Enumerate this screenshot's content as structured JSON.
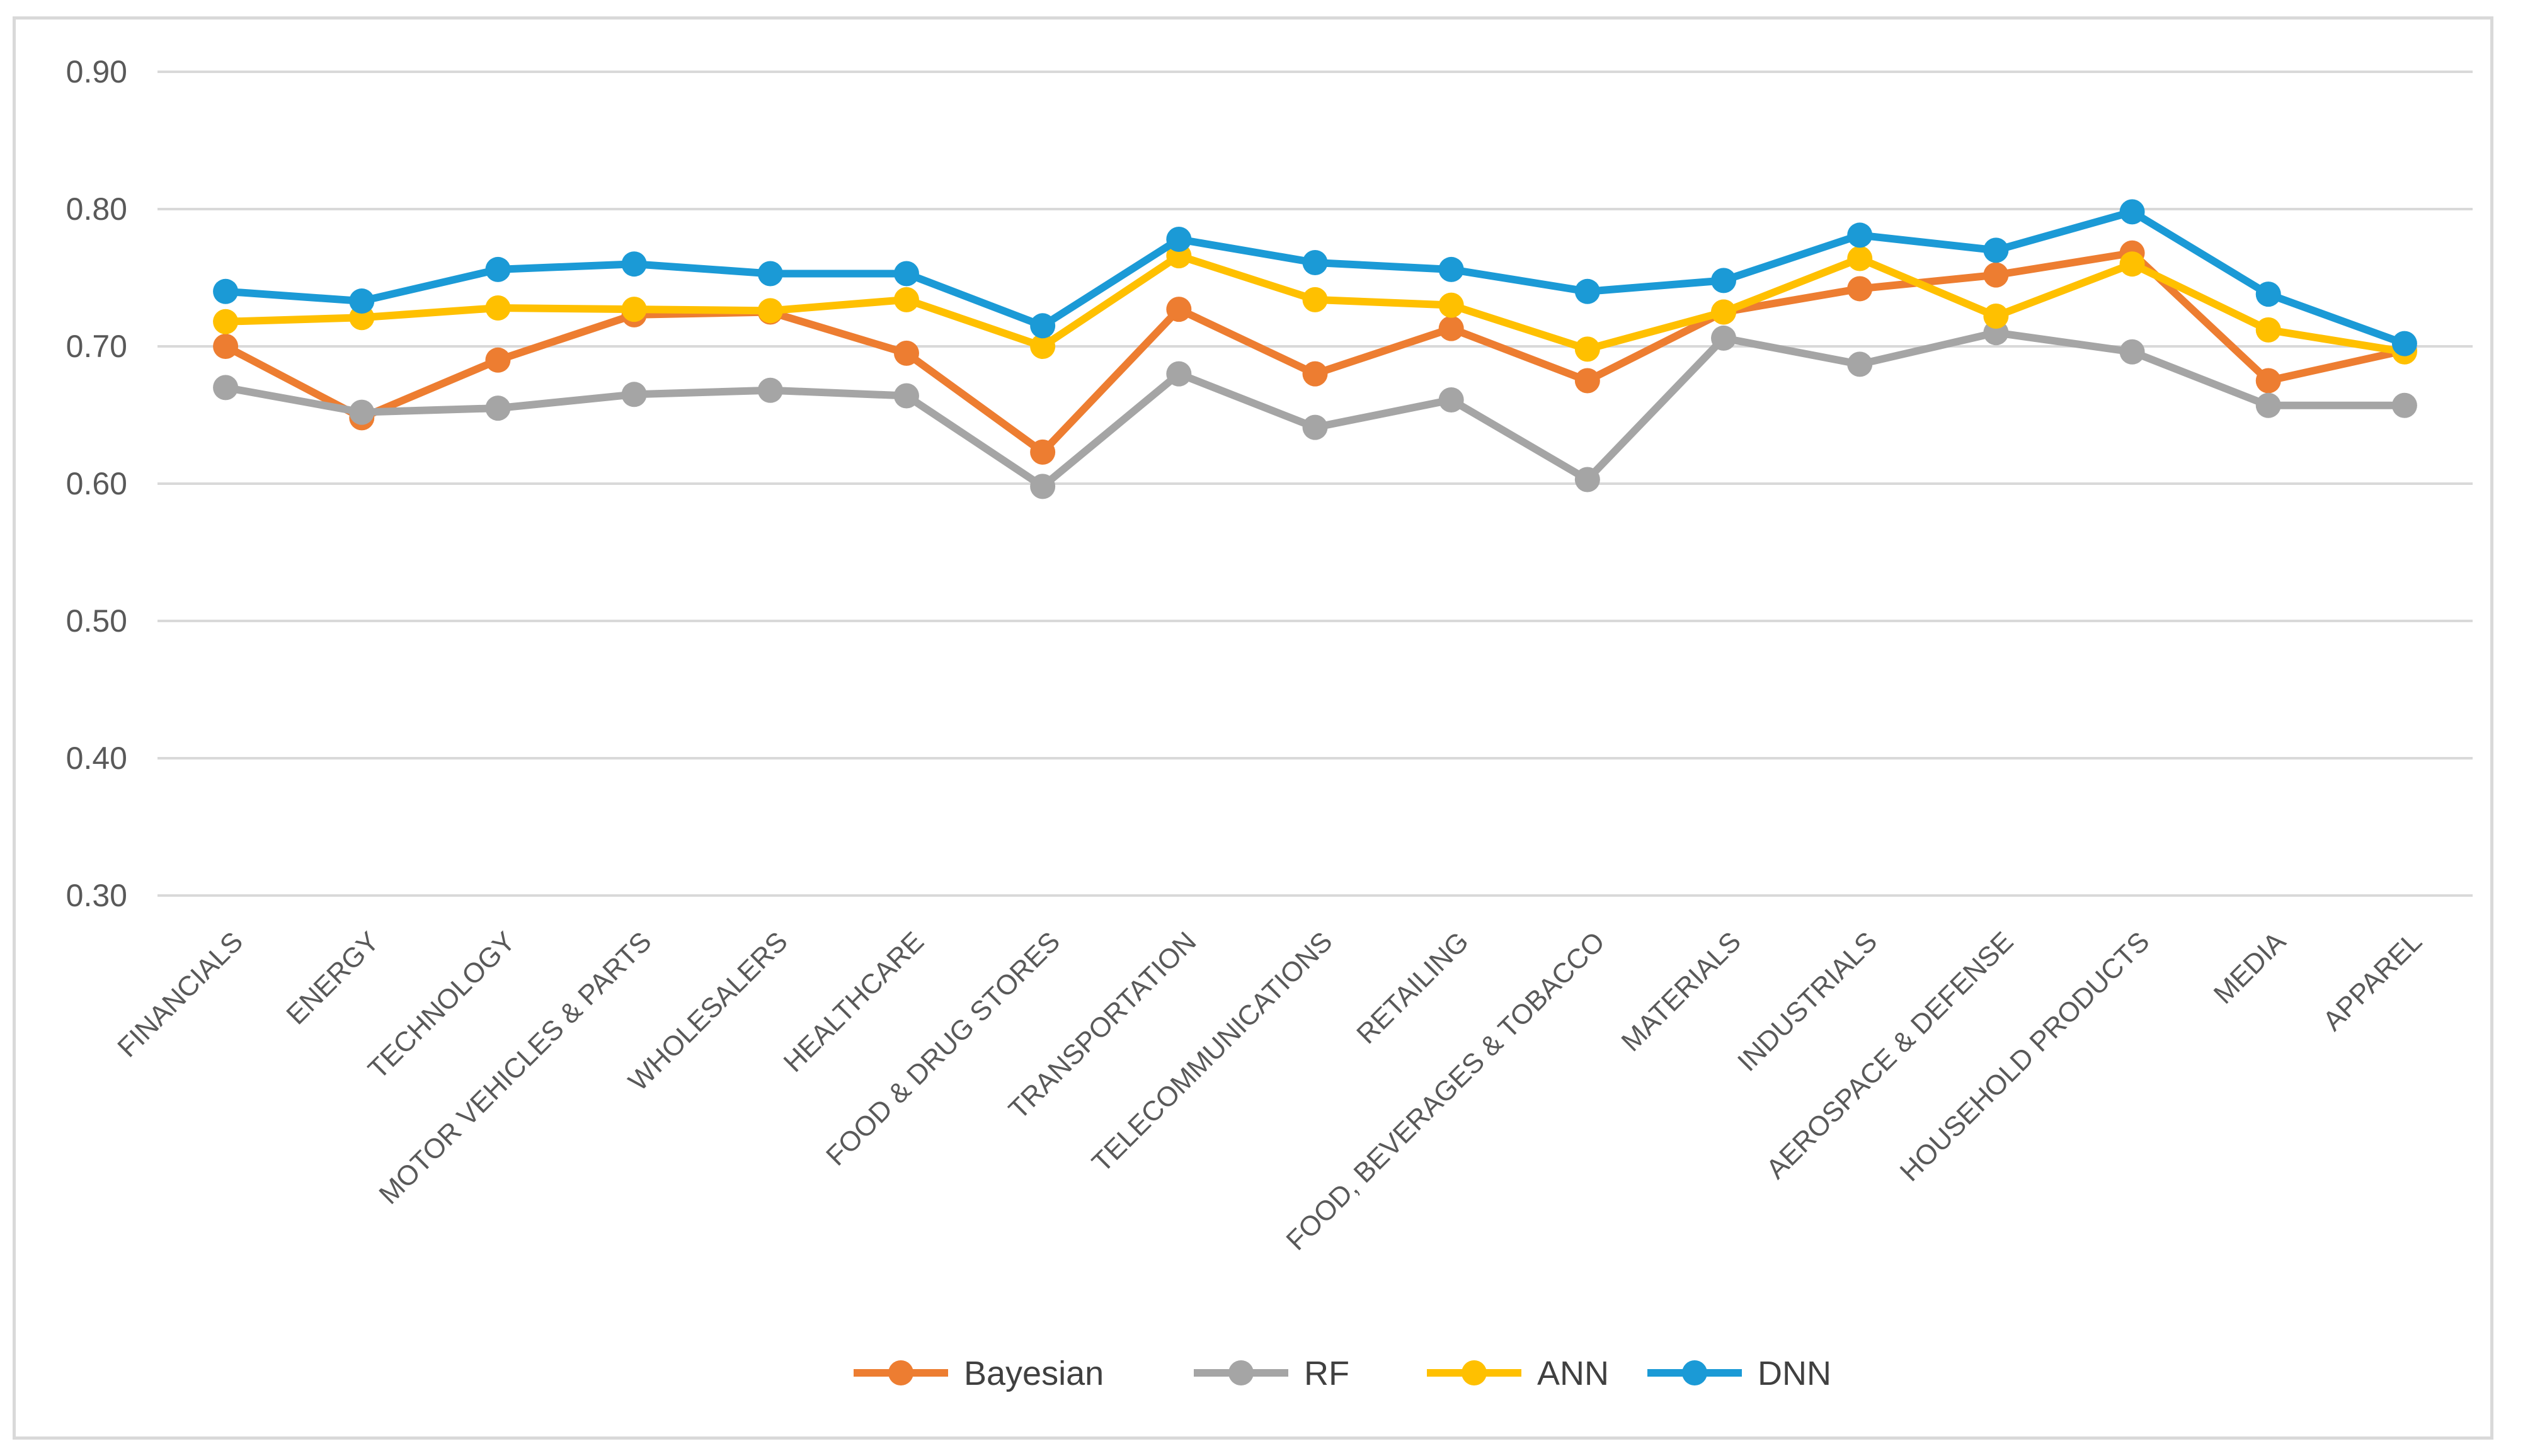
{
  "chart_data": {
    "type": "line",
    "title": "",
    "xlabel": "",
    "ylabel": "",
    "ylim": [
      0.3,
      0.9
    ],
    "yticks": [
      "0.90",
      "0.80",
      "0.70",
      "0.60",
      "0.50",
      "0.40",
      "0.30"
    ],
    "ytick_values": [
      0.9,
      0.8,
      0.7,
      0.6,
      0.5,
      0.4,
      0.3
    ],
    "grid": true,
    "legend_position": "bottom",
    "categories": [
      "FINANCIALS",
      "ENERGY",
      "TECHNOLOGY",
      "MOTOR VEHICLES & PARTS",
      "WHOLESALERS",
      "HEALTHCARE",
      "FOOD & DRUG STORES",
      "TRANSPORTATION",
      "TELECOMMUNICATIONS",
      "RETAILING",
      "FOOD, BEVERAGES & TOBACCO",
      "MATERIALS",
      "INDUSTRIALS",
      "AEROSPACE & DEFENSE",
      "HOUSEHOLD PRODUCTS",
      "MEDIA",
      "APPAREL"
    ],
    "series": [
      {
        "name": "Bayesian",
        "color": "#ED7D31",
        "values": [
          0.7,
          0.648,
          0.69,
          0.723,
          0.725,
          0.695,
          0.623,
          0.727,
          0.68,
          0.713,
          0.675,
          0.725,
          0.742,
          0.752,
          0.768,
          0.675,
          0.697
        ]
      },
      {
        "name": "RF",
        "color": "#A5A5A5",
        "values": [
          0.67,
          0.652,
          0.655,
          0.665,
          0.668,
          0.664,
          0.598,
          0.68,
          0.641,
          0.661,
          0.603,
          0.706,
          0.687,
          0.71,
          0.696,
          0.657,
          0.657
        ]
      },
      {
        "name": "ANN",
        "color": "#FFC000",
        "values": [
          0.718,
          0.721,
          0.728,
          0.727,
          0.726,
          0.734,
          0.7,
          0.766,
          0.734,
          0.73,
          0.698,
          0.725,
          0.764,
          0.722,
          0.76,
          0.712,
          0.696
        ]
      },
      {
        "name": "DNN",
        "color": "#1B9AD6",
        "values": [
          0.74,
          0.733,
          0.756,
          0.76,
          0.753,
          0.753,
          0.715,
          0.778,
          0.761,
          0.756,
          0.74,
          0.748,
          0.781,
          0.77,
          0.798,
          0.738,
          0.702
        ]
      }
    ]
  }
}
